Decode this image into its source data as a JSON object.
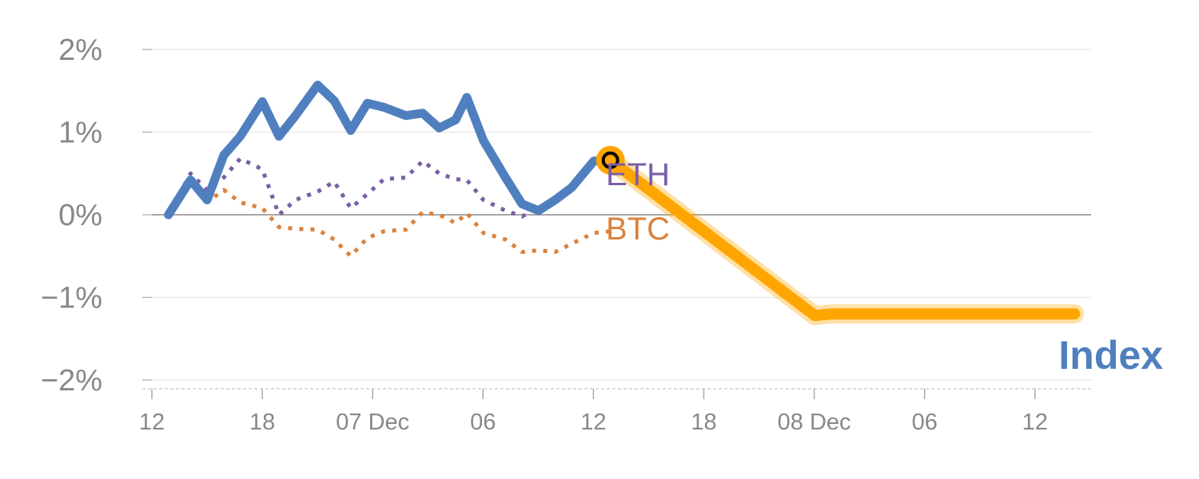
{
  "chart_data": {
    "type": "line",
    "x_ticks": [
      "12",
      "18",
      "07 Dec",
      "06",
      "12",
      "18",
      "08 Dec",
      "06",
      "12"
    ],
    "y_ticks": [
      "2%",
      "1%",
      "0%",
      "−1%",
      "−2%"
    ],
    "ylim": [
      -2,
      2
    ],
    "xlim": [
      0,
      17
    ],
    "colors": {
      "index": "#4f7fbf",
      "eth": "#7b5fa6",
      "btc": "#d9823f",
      "highlight": "#ffa500"
    },
    "series": [
      {
        "name": "Index",
        "style": "solid",
        "x": [
          0.3,
          0.7,
          1.0,
          1.3,
          1.6,
          2.0,
          2.3,
          2.6,
          3.0,
          3.3,
          3.6,
          3.9,
          4.2,
          4.6,
          4.9,
          5.2,
          5.5,
          5.7,
          6.0,
          6.4,
          6.7,
          7.0,
          7.3,
          7.6,
          8.0,
          8.3
        ],
        "values": [
          0.0,
          0.42,
          0.18,
          0.72,
          0.95,
          1.37,
          0.95,
          1.2,
          1.57,
          1.38,
          1.02,
          1.35,
          1.3,
          1.2,
          1.23,
          1.05,
          1.15,
          1.42,
          0.9,
          0.45,
          0.13,
          0.05,
          0.18,
          0.33,
          0.65,
          0.66
        ]
      },
      {
        "name": "ETH",
        "style": "dotted",
        "x": [
          0.3,
          0.7,
          1.0,
          1.3,
          1.6,
          2.0,
          2.3,
          2.6,
          3.0,
          3.3,
          3.6,
          3.9,
          4.2,
          4.6,
          4.9,
          5.2,
          5.5,
          5.7,
          6.0,
          6.4,
          6.7,
          7.0,
          7.3,
          7.6,
          8.0,
          8.3
        ],
        "values": [
          0.0,
          0.5,
          0.3,
          0.45,
          0.68,
          0.55,
          0.0,
          0.18,
          0.28,
          0.4,
          0.08,
          0.25,
          0.43,
          0.45,
          0.65,
          0.5,
          0.43,
          0.42,
          0.18,
          0.05,
          -0.02,
          0.08,
          0.2,
          0.35,
          0.62,
          0.66
        ]
      },
      {
        "name": "BTC",
        "style": "dotted",
        "x": [
          0.3,
          0.7,
          1.0,
          1.3,
          1.6,
          2.0,
          2.3,
          2.6,
          3.0,
          3.3,
          3.6,
          3.9,
          4.2,
          4.6,
          4.9,
          5.2,
          5.5,
          5.7,
          6.0,
          6.4,
          6.7,
          7.0,
          7.3,
          7.6,
          8.0,
          8.3
        ],
        "values": [
          0.0,
          0.42,
          0.15,
          0.3,
          0.15,
          0.08,
          -0.15,
          -0.17,
          -0.18,
          -0.3,
          -0.5,
          -0.28,
          -0.2,
          -0.18,
          0.03,
          0.0,
          -0.1,
          0.02,
          -0.22,
          -0.3,
          -0.45,
          -0.43,
          -0.45,
          -0.35,
          -0.22,
          -0.2
        ]
      },
      {
        "name": "",
        "style": "highlight",
        "x": [
          8.3,
          12.0,
          12.3,
          16.7
        ],
        "values": [
          0.66,
          -1.22,
          -1.2,
          -1.2
        ]
      }
    ],
    "labels": [
      {
        "text": "ETH",
        "series": "ETH"
      },
      {
        "text": "BTC",
        "series": "BTC"
      },
      {
        "text": "Index",
        "series": "Index"
      }
    ],
    "highlight_point": {
      "x": 8.3,
      "value": 0.66
    },
    "grid": true,
    "zero_line": true
  }
}
